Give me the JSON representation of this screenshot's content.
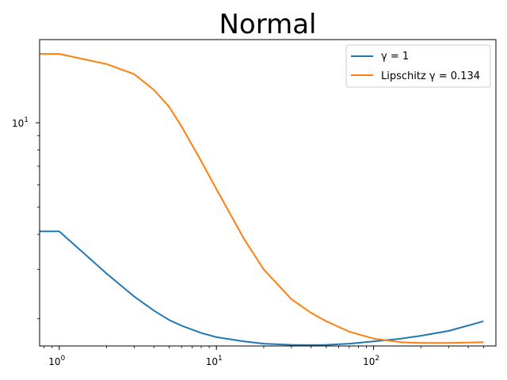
{
  "chart_data": {
    "type": "line",
    "title": "Normal",
    "xlabel": "",
    "ylabel": "",
    "xscale": "log",
    "yscale": "log",
    "xlim": [
      0.75,
      600
    ],
    "ylim": [
      1.6,
      19.8
    ],
    "grid": false,
    "legend_position": "top-right",
    "x_ticks": [
      {
        "value": 1,
        "base": "10",
        "exp": "0"
      },
      {
        "value": 10,
        "base": "10",
        "exp": "1"
      },
      {
        "value": 100,
        "base": "10",
        "exp": "2"
      }
    ],
    "y_ticks": [
      {
        "value": 10,
        "base": "10",
        "exp": "1"
      }
    ],
    "series": [
      {
        "name": "γ = 1",
        "color": "#1f77b4",
        "x": [
          0.75,
          1,
          2,
          3,
          4,
          5,
          6,
          8,
          10,
          15,
          20,
          30,
          40,
          50,
          70,
          100,
          150,
          200,
          300,
          500
        ],
        "y": [
          4.1,
          4.1,
          2.9,
          2.4,
          2.14,
          1.98,
          1.89,
          1.78,
          1.72,
          1.66,
          1.63,
          1.615,
          1.612,
          1.615,
          1.63,
          1.66,
          1.7,
          1.74,
          1.81,
          1.96
        ]
      },
      {
        "name": "Lipschitz γ = 0.134",
        "color": "#ff7f0e",
        "x": [
          0.75,
          1,
          2,
          3,
          4,
          5,
          6,
          8,
          10,
          15,
          20,
          30,
          40,
          50,
          70,
          100,
          150,
          200,
          300,
          500
        ],
        "y": [
          17.6,
          17.6,
          16.2,
          14.9,
          13.1,
          11.4,
          9.7,
          7.3,
          5.8,
          3.85,
          3.0,
          2.35,
          2.1,
          1.96,
          1.8,
          1.7,
          1.65,
          1.64,
          1.64,
          1.65
        ]
      }
    ]
  }
}
